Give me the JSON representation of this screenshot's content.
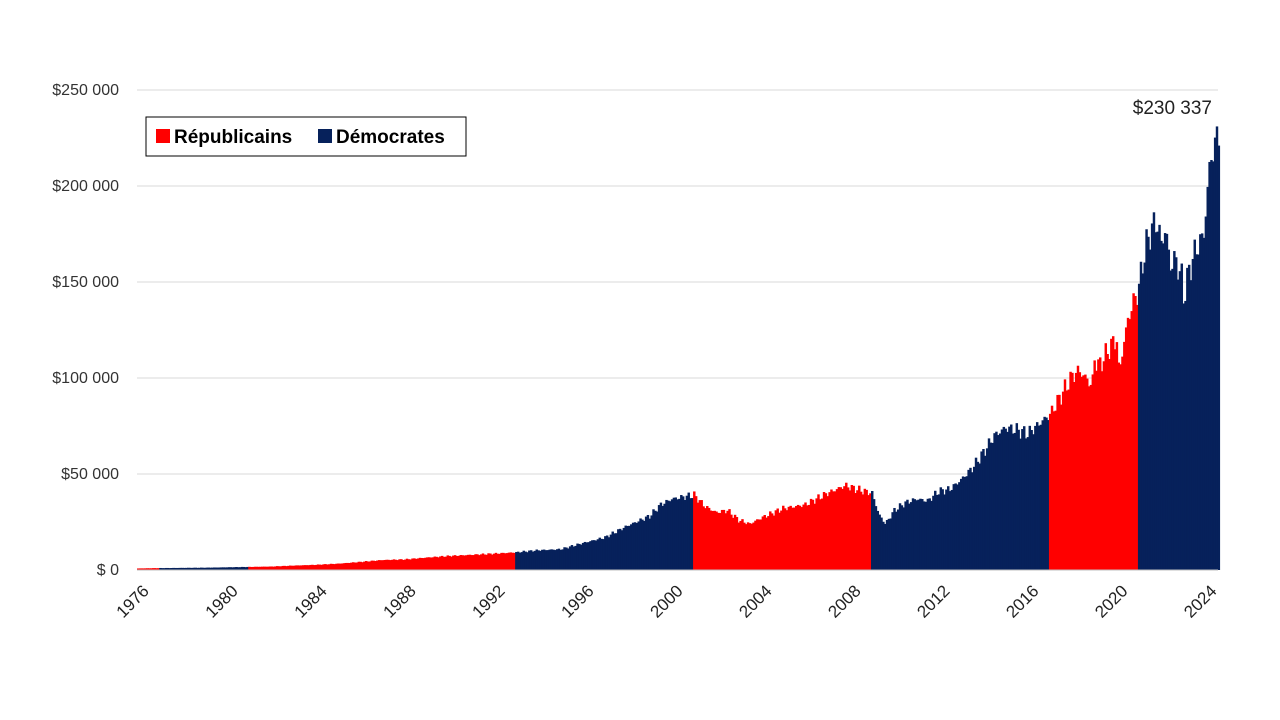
{
  "chart_data": {
    "type": "area",
    "title": "",
    "xlabel": "",
    "ylabel": "",
    "x_range": [
      1976,
      2024.6
    ],
    "ylim": [
      0,
      250000
    ],
    "y_ticks": [
      {
        "value": 0,
        "label": "$ 0"
      },
      {
        "value": 50000,
        "label": "$50 000"
      },
      {
        "value": 100000,
        "label": "$100 000"
      },
      {
        "value": 150000,
        "label": "$150 000"
      },
      {
        "value": 200000,
        "label": "$200 000"
      },
      {
        "value": 250000,
        "label": "$250 000"
      }
    ],
    "x_ticks": [
      "1976",
      "1980",
      "1984",
      "1988",
      "1992",
      "1996",
      "2000",
      "2004",
      "2008",
      "2012",
      "2016",
      "2020",
      "2024"
    ],
    "grid": "horizontal",
    "legend": {
      "placement": "top-left",
      "entries": [
        {
          "label": "Républicains",
          "party": "R",
          "color": "#ff0000"
        },
        {
          "label": "Démocrates",
          "party": "D",
          "color": "#06215b"
        }
      ]
    },
    "colors": {
      "R": "#ff0000",
      "D": "#06215b"
    },
    "periods": [
      {
        "start": 1976.0,
        "end": 1977.0,
        "party": "R"
      },
      {
        "start": 1977.0,
        "end": 1981.0,
        "party": "D"
      },
      {
        "start": 1981.0,
        "end": 1993.0,
        "party": "R"
      },
      {
        "start": 1993.0,
        "end": 2001.0,
        "party": "D"
      },
      {
        "start": 2001.0,
        "end": 2009.0,
        "party": "R"
      },
      {
        "start": 2009.0,
        "end": 2017.0,
        "party": "D"
      },
      {
        "start": 2017.0,
        "end": 2021.0,
        "party": "R"
      },
      {
        "start": 2021.0,
        "end": 2024.6,
        "party": "D"
      }
    ],
    "annotation": {
      "x": 2024.6,
      "value": 230337,
      "label": "$230 337"
    },
    "series": [
      {
        "x": [
          1976.0,
          1977.0,
          1979.0,
          1980.0,
          1981.0,
          1982.0,
          1983.0,
          1984.0,
          1985.0,
          1986.0,
          1987.0,
          1988.0,
          1989.0,
          1990.0,
          1991.0,
          1992.0,
          1993.0,
          1994.0,
          1995.0,
          1996.0,
          1997.0,
          1998.0,
          1999.0,
          1999.5,
          2000.0,
          2000.5,
          2001.0,
          2001.5,
          2002.0,
          2002.5,
          2003.0,
          2003.5,
          2004.0,
          2005.0,
          2006.0,
          2007.0,
          2007.8,
          2008.3,
          2009.0,
          2009.3,
          2009.6,
          2010.0,
          2010.5,
          2011.0,
          2011.5,
          2012.0,
          2012.5,
          2013.0,
          2013.5,
          2014.0,
          2014.5,
          2015.0,
          2015.5,
          2016.0,
          2016.5,
          2017.0,
          2017.5,
          2018.0,
          2018.3,
          2018.6,
          2018.9,
          2019.0,
          2019.2,
          2019.5,
          2019.8,
          2020.0,
          2020.1,
          2020.3,
          2020.5,
          2020.7,
          2021.0,
          2021.2,
          2021.5,
          2021.8,
          2022.0,
          2022.2,
          2022.4,
          2022.6,
          2022.9,
          2023.0,
          2023.3,
          2023.6,
          2023.9,
          2024.0,
          2024.2,
          2024.4,
          2024.6
        ],
        "values": [
          800,
          1000,
          1200,
          1400,
          1600,
          1800,
          2300,
          2700,
          3300,
          4200,
          5200,
          5500,
          6500,
          7300,
          7900,
          8500,
          9200,
          10300,
          10800,
          14000,
          17000,
          23000,
          28000,
          34000,
          37000,
          38000,
          39000,
          33000,
          30000,
          31000,
          26000,
          24000,
          27000,
          32000,
          34000,
          40000,
          44000,
          42000,
          40000,
          29000,
          24000,
          31000,
          35000,
          37000,
          36000,
          41000,
          42000,
          47000,
          53000,
          61000,
          70000,
          74000,
          73000,
          71000,
          76000,
          81000,
          91000,
          101000,
          104000,
          100000,
          96000,
          110000,
          106000,
          112000,
          118000,
          120000,
          102000,
          117000,
          130000,
          138000,
          147000,
          163000,
          176000,
          182000,
          170000,
          178000,
          158000,
          162000,
          154000,
          142000,
          158000,
          168000,
          174000,
          186000,
          214000,
          220000,
          230337
        ]
      }
    ]
  }
}
